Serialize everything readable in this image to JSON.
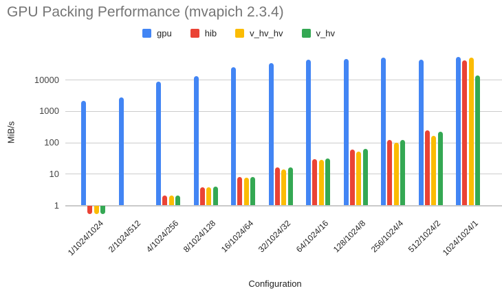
{
  "title": "GPU Packing Performance (mvapich 2.3.4)",
  "chart_data": {
    "type": "bar",
    "title": "GPU Packing Performance (mvapich 2.3.4)",
    "xlabel": "Configuration",
    "ylabel": "MiB/s",
    "y_scale": "log",
    "yticks": [
      1,
      10,
      100,
      1000,
      10000
    ],
    "ylim": [
      0.5,
      60000
    ],
    "grid": true,
    "legend_position": "top",
    "title_color": "#757575",
    "categories": [
      "1/1024/1024",
      "2/1024/512",
      "4/1024/256",
      "8/1024/128",
      "16/1024/64",
      "32/1024/32",
      "64/1024/16",
      "128/1024/8",
      "256/1024/4",
      "512/1024/2",
      "1024/1024/1"
    ],
    "series": [
      {
        "name": "gpu",
        "color": "#4285F4",
        "values": [
          2150,
          2700,
          8700,
          13000,
          25000,
          34000,
          43500,
          46000,
          51000,
          43500,
          54000
        ]
      },
      {
        "name": "hib",
        "color": "#EA4335",
        "values": [
          0.55,
          null,
          2,
          3.7,
          7.8,
          16,
          29,
          59,
          120,
          240,
          42000
        ]
      },
      {
        "name": "v_hv_hv",
        "color": "#FBBC04",
        "values": [
          0.55,
          null,
          2,
          3.7,
          7.5,
          14,
          28,
          51,
          100,
          165,
          50000
        ]
      },
      {
        "name": "v_hv",
        "color": "#34A853",
        "values": [
          0.55,
          null,
          2,
          3.9,
          7.8,
          16,
          31,
          62,
          120,
          220,
          14000
        ]
      }
    ]
  }
}
